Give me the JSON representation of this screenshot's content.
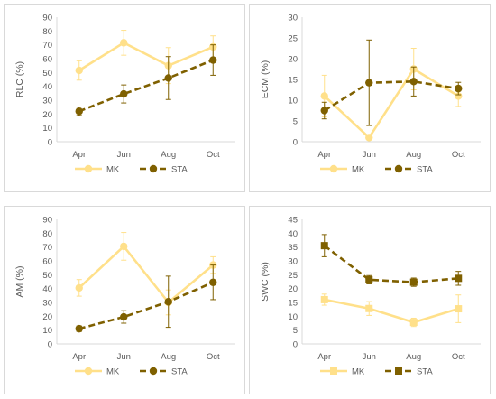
{
  "colors": {
    "mk": "#ffe08a",
    "sta": "#7f6000",
    "axis": "#d9d9d9",
    "text": "#595959"
  },
  "chart_data": [
    {
      "type": "line",
      "categories": [
        "Apr",
        "Jun",
        "Aug",
        "Oct"
      ],
      "ylabel": "RLC (%)",
      "ylim": [
        0,
        90
      ],
      "ytick_step": 10,
      "grid": false,
      "legend": "bottom",
      "series": [
        {
          "name": "MK",
          "marker": "circle",
          "dash": "solid",
          "values": [
            51.5,
            71.5,
            55,
            68.5
          ],
          "errors": [
            7,
            9,
            13,
            8
          ]
        },
        {
          "name": "STA",
          "marker": "circle",
          "dash": "dashed",
          "values": [
            22,
            34.5,
            46,
            59
          ],
          "errors": [
            3,
            6.5,
            15.5,
            11
          ]
        }
      ]
    },
    {
      "type": "line",
      "categories": [
        "Apr",
        "Jun",
        "Aug",
        "Oct"
      ],
      "ylabel": "ECM (%)",
      "ylim": [
        0,
        30
      ],
      "ytick_step": 5,
      "grid": false,
      "legend": "bottom",
      "series": [
        {
          "name": "MK",
          "marker": "circle",
          "dash": "solid",
          "values": [
            11,
            1,
            17.5,
            11
          ],
          "errors": [
            5,
            0.5,
            5,
            2.5
          ]
        },
        {
          "name": "STA",
          "marker": "circle",
          "dash": "dashed",
          "values": [
            7.5,
            14.2,
            14.5,
            12.8
          ],
          "errors": [
            2,
            10.3,
            3.5,
            1.5
          ]
        }
      ]
    },
    {
      "type": "line",
      "categories": [
        "Apr",
        "Jun",
        "Aug",
        "Oct"
      ],
      "ylabel": "AM (%)",
      "ylim": [
        0,
        90
      ],
      "ytick_step": 10,
      "grid": false,
      "legend": "bottom",
      "series": [
        {
          "name": "MK",
          "marker": "circle",
          "dash": "solid",
          "values": [
            40.5,
            70.5,
            30,
            57
          ],
          "errors": [
            6,
            10,
            9,
            6
          ]
        },
        {
          "name": "STA",
          "marker": "circle",
          "dash": "dashed",
          "values": [
            11,
            19.5,
            30.5,
            44.5
          ],
          "errors": [
            2,
            4.5,
            18.5,
            12.5
          ]
        }
      ]
    },
    {
      "type": "line",
      "categories": [
        "Apr",
        "Jun",
        "Aug",
        "Oct"
      ],
      "ylabel": "SWC (%)",
      "ylim": [
        0,
        45
      ],
      "ytick_step": 5,
      "grid": false,
      "legend": "bottom",
      "series": [
        {
          "name": "MK",
          "marker": "square",
          "dash": "solid",
          "values": [
            16,
            12.8,
            7.8,
            12.7
          ],
          "errors": [
            2,
            2.5,
            1.5,
            5
          ]
        },
        {
          "name": "STA",
          "marker": "square",
          "dash": "dashed",
          "values": [
            35.5,
            23.2,
            22.3,
            23.7
          ],
          "errors": [
            4,
            1.5,
            1.5,
            2.5
          ]
        }
      ]
    }
  ]
}
